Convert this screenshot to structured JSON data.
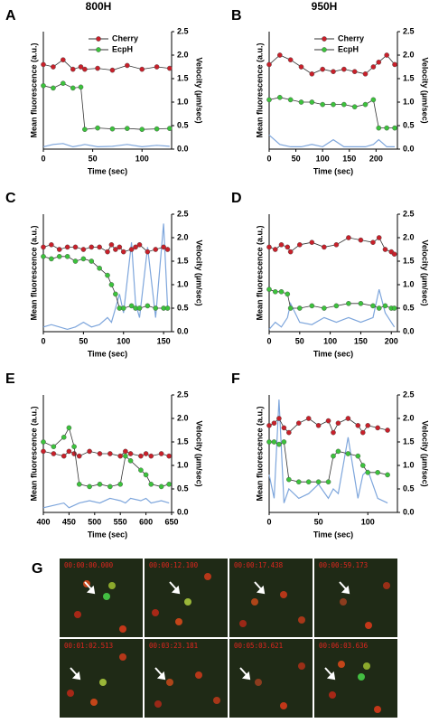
{
  "chart_data": [
    {
      "type": "line",
      "panel_label": "A",
      "title": "800H",
      "xlabel": "Time (sec)",
      "ylabel": "Mean fluorescence (a.u.)",
      "y2label": "Velocity (µm/sec)",
      "legend": true,
      "x": [
        0,
        10,
        20,
        30,
        38,
        42,
        55,
        70,
        85,
        100,
        115,
        128
      ],
      "xlim": [
        0,
        130
      ],
      "xticks": [
        0,
        50,
        100
      ],
      "ylim": [
        0,
        2.5
      ],
      "y2lim": [
        0,
        2.5
      ],
      "y2ticks": [
        {
          "value": 0,
          "label": "0.0"
        },
        {
          "value": 0.5,
          "label": "0.5"
        },
        {
          "value": 1,
          "label": "1.0"
        },
        {
          "value": 1.5,
          "label": "1.5"
        },
        {
          "value": 2,
          "label": "2.0"
        },
        {
          "value": 2.5,
          "label": "2.5"
        }
      ],
      "series": [
        {
          "name": "Cherry",
          "color": "#c8202a",
          "values": [
            1.8,
            1.75,
            1.9,
            1.7,
            1.75,
            1.7,
            1.72,
            1.68,
            1.78,
            1.7,
            1.75,
            1.72
          ]
        },
        {
          "name": "EcpH",
          "color": "#3cc23c",
          "values": [
            1.35,
            1.3,
            1.4,
            1.3,
            1.32,
            0.42,
            0.45,
            0.43,
            0.44,
            0.42,
            0.43,
            0.44
          ]
        },
        {
          "color": "#7ea6dc",
          "axis": "y2",
          "values": [
            0.05,
            0.1,
            0.12,
            0.05,
            0.08,
            0.1,
            0.05,
            0.06,
            0.1,
            0.05,
            0.08,
            0.06
          ]
        }
      ]
    },
    {
      "type": "line",
      "panel_label": "B",
      "title": "950H",
      "xlabel": "Time (sec)",
      "ylabel": "Mean fluorescence (a.u.)",
      "y2label": "Velocity (µm/sec)",
      "legend": true,
      "x": [
        0,
        20,
        40,
        60,
        80,
        100,
        120,
        140,
        160,
        180,
        195,
        205,
        220,
        235
      ],
      "xlim": [
        0,
        240
      ],
      "xticks": [
        0,
        50,
        100,
        150,
        200
      ],
      "ylim": [
        0,
        2.5
      ],
      "y2lim": [
        0,
        2.5
      ],
      "y2ticks": [
        {
          "value": 0,
          "label": "0.0"
        },
        {
          "value": 0.5,
          "label": "0.5"
        },
        {
          "value": 1,
          "label": "1.0"
        },
        {
          "value": 1.5,
          "label": "1.5"
        },
        {
          "value": 2,
          "label": "2.0"
        },
        {
          "value": 2.5,
          "label": "2.5"
        }
      ],
      "series": [
        {
          "name": "Cherry",
          "color": "#c8202a",
          "values": [
            1.8,
            2.0,
            1.9,
            1.75,
            1.6,
            1.7,
            1.65,
            1.7,
            1.65,
            1.6,
            1.75,
            1.85,
            2.0,
            1.8
          ]
        },
        {
          "name": "EcpH",
          "color": "#3cc23c",
          "values": [
            1.05,
            1.1,
            1.05,
            1.0,
            1.0,
            0.95,
            0.95,
            0.95,
            0.9,
            0.95,
            1.05,
            0.45,
            0.45,
            0.45
          ]
        },
        {
          "color": "#7ea6dc",
          "axis": "y2",
          "values": [
            0.3,
            0.1,
            0.05,
            0.05,
            0.1,
            0.05,
            0.2,
            0.05,
            0.05,
            0.05,
            0.1,
            0.2,
            0.05,
            0.05
          ]
        }
      ]
    },
    {
      "type": "line",
      "panel_label": "C",
      "xlabel": "Time (sec)",
      "ylabel": "Mean fluorescence (a.u.)",
      "y2label": "Velocity (µm/sec)",
      "x": [
        0,
        10,
        20,
        30,
        40,
        50,
        60,
        70,
        80,
        85,
        90,
        95,
        100,
        110,
        115,
        120,
        130,
        140,
        150,
        155
      ],
      "xlim": [
        0,
        160
      ],
      "xticks": [
        0,
        50,
        100,
        150
      ],
      "ylim": [
        0,
        2.5
      ],
      "y2lim": [
        0,
        2.5
      ],
      "y2ticks": [
        {
          "value": 0,
          "label": "0.0"
        },
        {
          "value": 0.5,
          "label": "0.5"
        },
        {
          "value": 1,
          "label": "1.0"
        },
        {
          "value": 1.5,
          "label": "1.5"
        },
        {
          "value": 2,
          "label": "2.0"
        },
        {
          "value": 2.5,
          "label": "2.5"
        }
      ],
      "series": [
        {
          "name": "Cherry",
          "color": "#c8202a",
          "values": [
            1.8,
            1.85,
            1.75,
            1.8,
            1.8,
            1.75,
            1.8,
            1.8,
            1.7,
            1.85,
            1.75,
            1.8,
            1.7,
            1.75,
            1.8,
            1.85,
            1.7,
            1.75,
            1.8,
            1.75
          ]
        },
        {
          "name": "EcpH",
          "color": "#3cc23c",
          "values": [
            1.6,
            1.55,
            1.6,
            1.6,
            1.5,
            1.55,
            1.5,
            1.35,
            1.2,
            1.0,
            0.8,
            0.5,
            0.5,
            0.55,
            0.5,
            0.5,
            0.55,
            0.5,
            0.5,
            0.5
          ]
        },
        {
          "color": "#7ea6dc",
          "axis": "y2",
          "values": [
            0.1,
            0.15,
            0.1,
            0.05,
            0.1,
            0.2,
            0.1,
            0.15,
            0.3,
            0.2,
            0.5,
            0.8,
            0.4,
            1.9,
            0.6,
            0.3,
            1.8,
            0.3,
            2.3,
            0.5
          ]
        }
      ]
    },
    {
      "type": "line",
      "panel_label": "D",
      "xlabel": "Time (sec)",
      "ylabel": "Mean fluorescence (a.u.)",
      "y2label": "Velocity (µm/sec)",
      "x": [
        0,
        10,
        20,
        30,
        35,
        50,
        70,
        90,
        110,
        130,
        150,
        170,
        180,
        190,
        200,
        205
      ],
      "xlim": [
        0,
        210
      ],
      "xticks": [
        0,
        50,
        100,
        150,
        200
      ],
      "ylim": [
        0,
        2.5
      ],
      "y2lim": [
        0,
        2.5
      ],
      "y2ticks": [
        {
          "value": 0,
          "label": "0.0"
        },
        {
          "value": 0.5,
          "label": "0.5"
        },
        {
          "value": 1,
          "label": "1.0"
        },
        {
          "value": 1.5,
          "label": "1.5"
        },
        {
          "value": 2,
          "label": "2.0"
        },
        {
          "value": 2.5,
          "label": "2.5"
        }
      ],
      "series": [
        {
          "name": "Cherry",
          "color": "#c8202a",
          "values": [
            1.8,
            1.75,
            1.85,
            1.8,
            1.7,
            1.85,
            1.9,
            1.8,
            1.85,
            2.0,
            1.95,
            1.9,
            2.0,
            1.75,
            1.7,
            1.65
          ]
        },
        {
          "name": "EcpH",
          "color": "#3cc23c",
          "values": [
            0.9,
            0.85,
            0.85,
            0.8,
            0.5,
            0.5,
            0.55,
            0.5,
            0.55,
            0.6,
            0.6,
            0.55,
            0.5,
            0.55,
            0.5,
            0.5
          ]
        },
        {
          "color": "#7ea6dc",
          "axis": "y2",
          "values": [
            0.05,
            0.2,
            0.1,
            0.3,
            0.6,
            0.2,
            0.15,
            0.3,
            0.2,
            0.3,
            0.2,
            0.3,
            0.9,
            0.4,
            0.2,
            0.1
          ]
        }
      ]
    },
    {
      "type": "line",
      "panel_label": "E",
      "xlabel": "Time (sec)",
      "ylabel": "Mean fluorescence (a.u.)",
      "y2label": "Velocity (µm/sec)",
      "x": [
        400,
        420,
        440,
        450,
        460,
        470,
        490,
        510,
        530,
        550,
        560,
        570,
        590,
        600,
        610,
        630,
        645
      ],
      "xlim": [
        400,
        650
      ],
      "xticks": [
        400,
        450,
        500,
        550,
        600,
        650
      ],
      "ylim": [
        0,
        2.5
      ],
      "y2lim": [
        0,
        2.5
      ],
      "y2ticks": [
        {
          "value": 0,
          "label": "0.0"
        },
        {
          "value": 0.5,
          "label": "0.5"
        },
        {
          "value": 1,
          "label": "1.0"
        },
        {
          "value": 1.5,
          "label": "1.5"
        },
        {
          "value": 2,
          "label": "2.0"
        },
        {
          "value": 2.5,
          "label": "2.5"
        }
      ],
      "series": [
        {
          "name": "Cherry",
          "color": "#c8202a",
          "values": [
            1.3,
            1.25,
            1.2,
            1.3,
            1.25,
            1.2,
            1.3,
            1.25,
            1.25,
            1.2,
            1.3,
            1.25,
            1.2,
            1.25,
            1.2,
            1.25,
            1.2
          ]
        },
        {
          "name": "EcpH",
          "color": "#3cc23c",
          "values": [
            1.5,
            1.4,
            1.6,
            1.8,
            1.4,
            0.6,
            0.55,
            0.6,
            0.55,
            0.6,
            1.2,
            1.1,
            0.9,
            0.8,
            0.6,
            0.55,
            0.6
          ]
        },
        {
          "color": "#7ea6dc",
          "axis": "y2",
          "values": [
            0.1,
            0.15,
            0.2,
            0.1,
            0.15,
            0.2,
            0.25,
            0.2,
            0.3,
            0.25,
            0.2,
            0.3,
            0.25,
            0.3,
            0.2,
            0.25,
            0.2
          ]
        }
      ]
    },
    {
      "type": "line",
      "panel_label": "F",
      "xlabel": "Time (sec)",
      "ylabel": "Mean fluorescence (a.u.)",
      "y2label": "Velocity (µm/sec)",
      "x": [
        0,
        5,
        10,
        15,
        20,
        30,
        40,
        50,
        60,
        65,
        70,
        80,
        90,
        95,
        100,
        110,
        120
      ],
      "xlim": [
        0,
        130
      ],
      "xticks": [
        0,
        50,
        100
      ],
      "ylim": [
        0,
        2.5
      ],
      "y2lim": [
        0,
        2.5
      ],
      "y2ticks": [
        {
          "value": 0,
          "label": "0.0"
        },
        {
          "value": 0.5,
          "label": "0.5"
        },
        {
          "value": 1,
          "label": "1.0"
        },
        {
          "value": 1.5,
          "label": "1.5"
        },
        {
          "value": 2,
          "label": "2.0"
        },
        {
          "value": 2.5,
          "label": "2.5"
        }
      ],
      "series": [
        {
          "name": "Cherry",
          "color": "#c8202a",
          "values": [
            1.85,
            1.9,
            2.0,
            1.8,
            1.7,
            1.9,
            2.0,
            1.85,
            1.95,
            1.7,
            1.9,
            2.0,
            1.85,
            1.7,
            1.85,
            1.8,
            1.75
          ]
        },
        {
          "name": "EcpH",
          "color": "#3cc23c",
          "values": [
            1.5,
            1.5,
            1.45,
            1.5,
            0.7,
            0.65,
            0.65,
            0.65,
            0.65,
            1.2,
            1.3,
            1.25,
            1.2,
            1.0,
            0.85,
            0.85,
            0.8
          ]
        },
        {
          "color": "#7ea6dc",
          "axis": "y2",
          "values": [
            0.8,
            0.3,
            2.4,
            0.2,
            0.5,
            0.3,
            0.4,
            0.6,
            0.3,
            0.5,
            0.4,
            1.6,
            0.3,
            0.8,
            0.9,
            0.3,
            0.2
          ]
        }
      ]
    }
  ],
  "image_panel": {
    "label": "G",
    "frames": [
      "00:00:00.000",
      "00:00:12.100",
      "00:00:17.438",
      "00:00:59.173",
      "00:01:02.513",
      "00:03:23.181",
      "00:05:03.621",
      "00:06:03.636"
    ]
  }
}
